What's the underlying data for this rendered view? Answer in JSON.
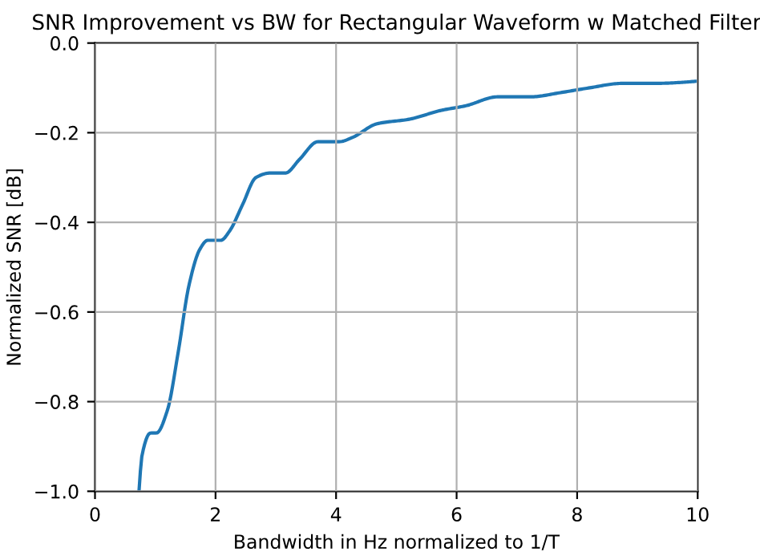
{
  "chart_data": {
    "type": "line",
    "title": "SNR Improvement vs BW for Rectangular Waveform w Matched Filter",
    "xlabel": "Bandwidth in Hz normalized to 1/T",
    "ylabel": "Normalized SNR [dB]",
    "series": [
      {
        "color": "#1f77b4",
        "x": [
          0.73,
          0.78,
          0.92,
          1.02,
          1.2,
          1.38,
          1.56,
          1.74,
          1.87,
          2.09,
          2.23,
          2.45,
          2.67,
          2.9,
          3.16,
          3.39,
          3.7,
          4.06,
          4.28,
          4.68,
          5.21,
          5.75,
          6.15,
          6.68,
          7.22,
          7.75,
          8.2,
          8.74,
          9.27,
          10
        ],
        "values": [
          -1.0,
          -0.92,
          -0.87,
          -0.87,
          -0.82,
          -0.69,
          -0.54,
          -0.46,
          -0.44,
          -0.44,
          -0.42,
          -0.36,
          -0.3,
          -0.29,
          -0.29,
          -0.26,
          -0.22,
          -0.22,
          -0.21,
          -0.18,
          -0.17,
          -0.15,
          -0.14,
          -0.12,
          -0.12,
          -0.11,
          -0.1,
          -0.09,
          -0.09,
          -0.085
        ]
      }
    ],
    "xlim": [
      0,
      10
    ],
    "xticks": [
      0,
      2,
      4,
      6,
      8,
      10
    ],
    "ylim": [
      -1.0,
      0.0
    ],
    "yticks": [
      {
        "value": -1.0,
        "label": "−1.0"
      },
      {
        "value": -0.8,
        "label": "−0.8"
      },
      {
        "value": -0.6,
        "label": "−0.6"
      },
      {
        "value": -0.4,
        "label": "−0.4"
      },
      {
        "value": -0.2,
        "label": "−0.2"
      },
      {
        "value": 0.0,
        "label": "0.0"
      }
    ],
    "grid": true,
    "line_style": "solid",
    "marker": "none"
  }
}
